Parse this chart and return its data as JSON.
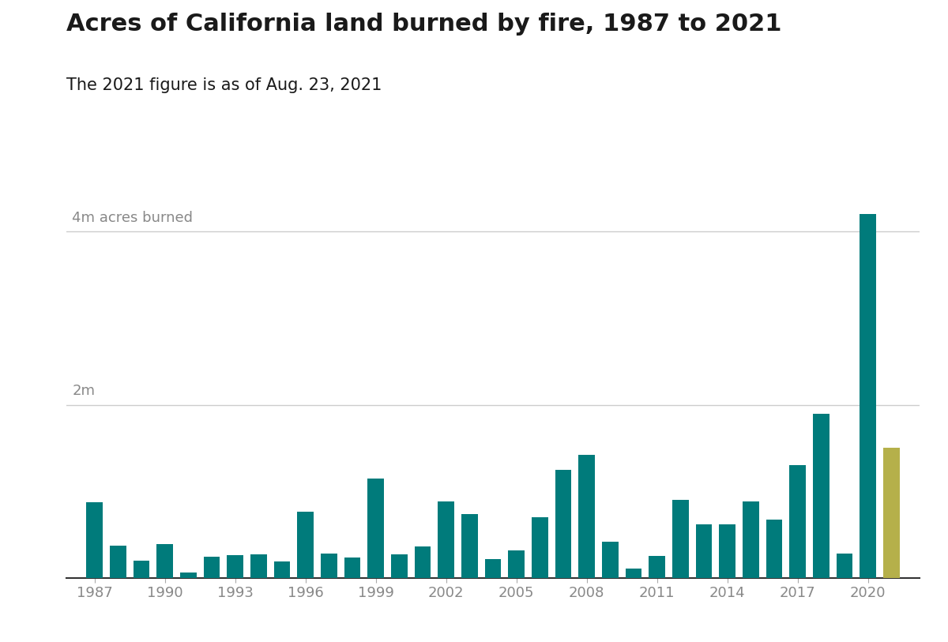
{
  "title": "Acres of California land burned by fire, 1987 to 2021",
  "subtitle": "The 2021 figure is as of Aug. 23, 2021",
  "years": [
    1987,
    1988,
    1989,
    1990,
    1991,
    1992,
    1993,
    1994,
    1995,
    1996,
    1997,
    1998,
    1999,
    2000,
    2001,
    2002,
    2003,
    2004,
    2005,
    2006,
    2007,
    2008,
    2009,
    2010,
    2011,
    2012,
    2013,
    2014,
    2015,
    2016,
    2017,
    2018,
    2019,
    2020,
    2021
  ],
  "values": [
    870000,
    370000,
    200000,
    390000,
    60000,
    240000,
    260000,
    270000,
    190000,
    760000,
    280000,
    230000,
    1150000,
    270000,
    360000,
    880000,
    740000,
    220000,
    320000,
    700000,
    1250000,
    1420000,
    420000,
    110000,
    250000,
    900000,
    620000,
    620000,
    880000,
    670000,
    1300000,
    1900000,
    280000,
    4200000,
    1500000
  ],
  "bar_color_default": "#007b7b",
  "bar_color_2021": "#b5b04a",
  "background_color": "#ffffff",
  "gridline_color": "#cccccc",
  "text_color_title": "#1a1a1a",
  "text_color_subtitle": "#1a1a1a",
  "text_color_axis": "#888888",
  "ytick_values": [
    2000000,
    4000000
  ],
  "ytick_labels": [
    "2m",
    "4m acres burned"
  ],
  "ylim": [
    0,
    4600000
  ],
  "xlim": [
    1985.8,
    2022.2
  ],
  "xtick_years": [
    1987,
    1990,
    1993,
    1996,
    1999,
    2002,
    2005,
    2008,
    2011,
    2014,
    2017,
    2020
  ],
  "title_fontsize": 22,
  "subtitle_fontsize": 15,
  "axis_label_fontsize": 13,
  "bar_width": 0.7
}
